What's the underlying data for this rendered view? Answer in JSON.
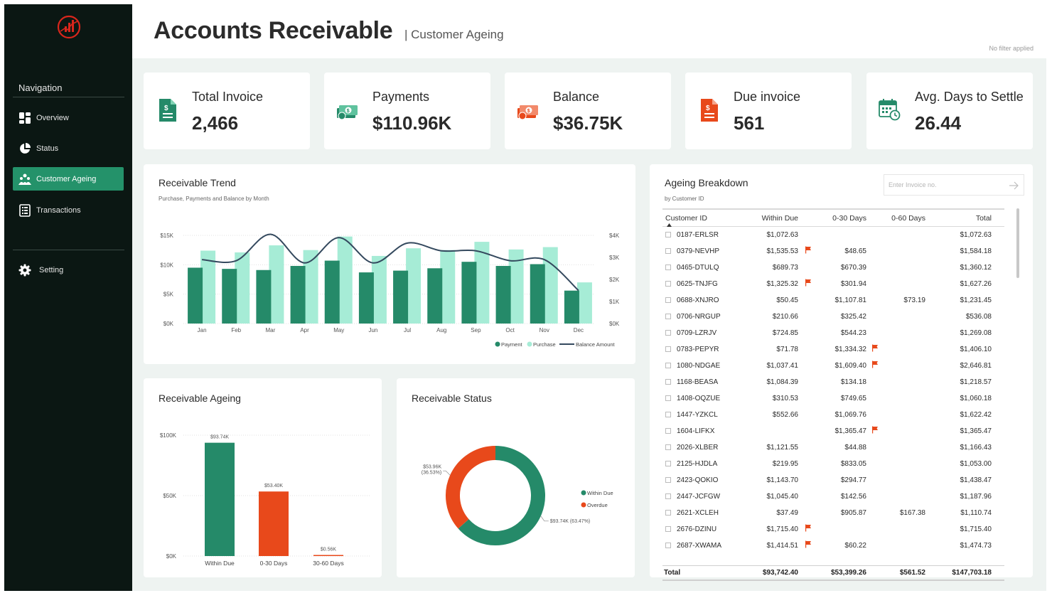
{
  "header": {
    "title": "Accounts Receivable",
    "subtitle": "| Customer Ageing",
    "filter_status": "No filter applied"
  },
  "sidebar": {
    "nav_title": "Navigation",
    "items": [
      {
        "label": "Overview",
        "icon": "dashboard-icon",
        "active": false
      },
      {
        "label": "Status",
        "icon": "pie-chart-icon",
        "active": false
      },
      {
        "label": "Customer Ageing",
        "icon": "people-icon",
        "active": true
      },
      {
        "label": "Transactions",
        "icon": "list-icon",
        "active": false
      }
    ],
    "setting": {
      "label": "Setting",
      "icon": "gear-icon"
    }
  },
  "kpis": [
    {
      "label": "Total Invoice",
      "value": "2,466",
      "icon": "document-icon",
      "color": "#258a69"
    },
    {
      "label": "Payments",
      "value": "$110.96K",
      "icon": "cash-icon",
      "color": "#258a69"
    },
    {
      "label": "Balance",
      "value": "$36.75K",
      "icon": "cash-icon",
      "color": "#e8491b"
    },
    {
      "label": "Due invoice",
      "value": "561",
      "icon": "document-icon",
      "color": "#e8491b"
    },
    {
      "label": "Avg. Days to Settle",
      "value": "26.44",
      "icon": "calendar-clock-icon",
      "color": "#258a69"
    }
  ],
  "colors": {
    "green": "#258a69",
    "mint": "#a6ecd6",
    "orange": "#e8491b",
    "line": "#34495e"
  },
  "trend": {
    "title": "Receivable Trend",
    "subtitle": "Purchase, Payments and Balance by Month",
    "legend": {
      "payment": "Payment",
      "purchase": "Purchase",
      "balance": "Balance Amount"
    }
  },
  "ageing": {
    "title": "Receivable Ageing"
  },
  "status": {
    "title": "Receivable Status"
  },
  "breakdown": {
    "title": "Ageing Breakdown",
    "subtitle": "by Customer ID",
    "search_placeholder": "Enter Invoice no.",
    "columns": [
      "Customer ID",
      "Within Due",
      "0-30 Days",
      "0-60 Days",
      "Total"
    ],
    "rows": [
      {
        "id": "0187-ERLSR",
        "w": "$1,072.63",
        "a": "",
        "b": "",
        "t": "$1,072.63",
        "fw": false,
        "fa": false
      },
      {
        "id": "0379-NEVHP",
        "w": "$1,535.53",
        "a": "$48.65",
        "b": "",
        "t": "$1,584.18",
        "fw": true,
        "fa": false
      },
      {
        "id": "0465-DTULQ",
        "w": "$689.73",
        "a": "$670.39",
        "b": "",
        "t": "$1,360.12",
        "fw": false,
        "fa": false
      },
      {
        "id": "0625-TNJFG",
        "w": "$1,325.32",
        "a": "$301.94",
        "b": "",
        "t": "$1,627.26",
        "fw": true,
        "fa": false
      },
      {
        "id": "0688-XNJRO",
        "w": "$50.45",
        "a": "$1,107.81",
        "b": "$73.19",
        "t": "$1,231.45",
        "fw": false,
        "fa": false
      },
      {
        "id": "0706-NRGUP",
        "w": "$210.66",
        "a": "$325.42",
        "b": "",
        "t": "$536.08",
        "fw": false,
        "fa": false
      },
      {
        "id": "0709-LZRJV",
        "w": "$724.85",
        "a": "$544.23",
        "b": "",
        "t": "$1,269.08",
        "fw": false,
        "fa": false
      },
      {
        "id": "0783-PEPYR",
        "w": "$71.78",
        "a": "$1,334.32",
        "b": "",
        "t": "$1,406.10",
        "fw": false,
        "fa": true
      },
      {
        "id": "1080-NDGAE",
        "w": "$1,037.41",
        "a": "$1,609.40",
        "b": "",
        "t": "$2,646.81",
        "fw": false,
        "fa": true
      },
      {
        "id": "1168-BEASA",
        "w": "$1,084.39",
        "a": "$134.18",
        "b": "",
        "t": "$1,218.57",
        "fw": false,
        "fa": false
      },
      {
        "id": "1408-OQZUE",
        "w": "$310.53",
        "a": "$749.65",
        "b": "",
        "t": "$1,060.18",
        "fw": false,
        "fa": false
      },
      {
        "id": "1447-YZKCL",
        "w": "$552.66",
        "a": "$1,069.76",
        "b": "",
        "t": "$1,622.42",
        "fw": false,
        "fa": false
      },
      {
        "id": "1604-LIFKX",
        "w": "",
        "a": "$1,365.47",
        "b": "",
        "t": "$1,365.47",
        "fw": false,
        "fa": true
      },
      {
        "id": "2026-XLBER",
        "w": "$1,121.55",
        "a": "$44.88",
        "b": "",
        "t": "$1,166.43",
        "fw": false,
        "fa": false
      },
      {
        "id": "2125-HJDLA",
        "w": "$219.95",
        "a": "$833.05",
        "b": "",
        "t": "$1,053.00",
        "fw": false,
        "fa": false
      },
      {
        "id": "2423-QOKIO",
        "w": "$1,143.70",
        "a": "$294.77",
        "b": "",
        "t": "$1,438.47",
        "fw": false,
        "fa": false
      },
      {
        "id": "2447-JCFGW",
        "w": "$1,045.40",
        "a": "$142.56",
        "b": "",
        "t": "$1,187.96",
        "fw": false,
        "fa": false
      },
      {
        "id": "2621-XCLEH",
        "w": "$37.49",
        "a": "$905.87",
        "b": "$167.38",
        "t": "$1,110.74",
        "fw": false,
        "fa": false
      },
      {
        "id": "2676-DZINU",
        "w": "$1,715.40",
        "a": "",
        "b": "",
        "t": "$1,715.40",
        "fw": true,
        "fa": false
      },
      {
        "id": "2687-XWAMA",
        "w": "$1,414.51",
        "a": "$60.22",
        "b": "",
        "t": "$1,474.73",
        "fw": true,
        "fa": false
      }
    ],
    "total": {
      "label": "Total",
      "w": "$93,742.40",
      "a": "$53,399.26",
      "b": "$561.52",
      "t": "$147,703.18"
    }
  },
  "chart_data": [
    {
      "type": "bar",
      "title": "Receivable Trend",
      "subtitle": "Purchase, Payments and Balance by Month",
      "categories": [
        "Jan",
        "Feb",
        "Mar",
        "Apr",
        "May",
        "Jun",
        "Jul",
        "Aug",
        "Sep",
        "Oct",
        "Nov",
        "Dec"
      ],
      "series": [
        {
          "name": "Payment",
          "kind": "bar",
          "axis": "left",
          "values": [
            9500,
            9300,
            9100,
            9800,
            10700,
            8700,
            9000,
            9400,
            10500,
            9800,
            10100,
            5600
          ]
        },
        {
          "name": "Purchase",
          "kind": "bar",
          "axis": "left",
          "values": [
            12400,
            12100,
            13300,
            12500,
            14800,
            11500,
            12800,
            12500,
            13900,
            12600,
            13000,
            7000
          ]
        },
        {
          "name": "Balance Amount",
          "kind": "line",
          "axis": "right",
          "values": [
            2900,
            2850,
            4050,
            2750,
            3900,
            2750,
            3650,
            3300,
            3300,
            2850,
            2900,
            1500
          ]
        }
      ],
      "y_left": {
        "range": [
          0,
          15000
        ],
        "ticks": [
          "$0K",
          "$5K",
          "$10K",
          "$15K"
        ]
      },
      "y_right": {
        "range": [
          0,
          4000
        ],
        "ticks": [
          "$0K",
          "$1K",
          "$2K",
          "$3K",
          "$4K"
        ]
      },
      "legend": "bottom-right"
    },
    {
      "type": "bar",
      "title": "Receivable Ageing",
      "categories": [
        "Within Due",
        "0-30 Days",
        "30-60 Days"
      ],
      "values": [
        93740,
        53400,
        560
      ],
      "data_labels": [
        "$93.74K",
        "$53.40K",
        "$0.56K"
      ],
      "colors": [
        "#258a69",
        "#e8491b",
        "#e8491b"
      ],
      "ylim": [
        0,
        100000
      ],
      "ticks": [
        "$0K",
        "$50K",
        "$100K"
      ]
    },
    {
      "type": "pie",
      "title": "Receivable Status",
      "labels": [
        "Within Due",
        "Overdue"
      ],
      "values": [
        93.74,
        53.96
      ],
      "data_labels": [
        "$93.74K (63.47%)",
        "$53.96K (36.53%)"
      ],
      "colors": [
        "#258a69",
        "#e8491b"
      ],
      "legend": "right"
    }
  ]
}
